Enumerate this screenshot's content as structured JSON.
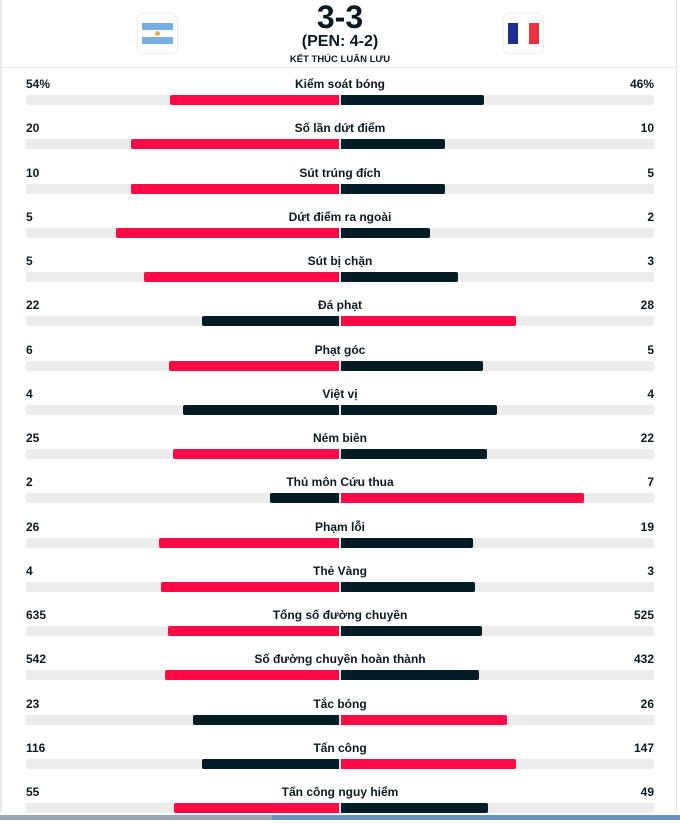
{
  "match": {
    "home_team_flag": "argentina-flag",
    "away_team_flag": "france-flag",
    "score": "3-3",
    "penalties": "(PEN: 4-2)",
    "status": "KẾT THÚC LUÂN LƯU"
  },
  "colors": {
    "leader": "#ff0a45",
    "trailer": "#021c26",
    "track": "#ececec",
    "argentina_blue": "#79aee0",
    "france_blue": "#1f2f8f",
    "france_red": "#e8323c"
  },
  "stats": [
    {
      "label": "Kiểm soát bóng",
      "home": "54%",
      "away": "46%",
      "home_value": 54,
      "away_value": 46
    },
    {
      "label": "Số lần dứt điểm",
      "home": "20",
      "away": "10",
      "home_value": 20,
      "away_value": 10
    },
    {
      "label": "Sút trúng đích",
      "home": "10",
      "away": "5",
      "home_value": 10,
      "away_value": 5
    },
    {
      "label": "Dứt điểm ra ngoài",
      "home": "5",
      "away": "2",
      "home_value": 5,
      "away_value": 2
    },
    {
      "label": "Sút bị chặn",
      "home": "5",
      "away": "3",
      "home_value": 5,
      "away_value": 3
    },
    {
      "label": "Đá phạt",
      "home": "22",
      "away": "28",
      "home_value": 22,
      "away_value": 28
    },
    {
      "label": "Phạt góc",
      "home": "6",
      "away": "5",
      "home_value": 6,
      "away_value": 5
    },
    {
      "label": "Việt vị",
      "home": "4",
      "away": "4",
      "home_value": 4,
      "away_value": 4
    },
    {
      "label": "Ném biên",
      "home": "25",
      "away": "22",
      "home_value": 25,
      "away_value": 22
    },
    {
      "label": "Thủ môn Cứu thua",
      "home": "2",
      "away": "7",
      "home_value": 2,
      "away_value": 7
    },
    {
      "label": "Phạm lỗi",
      "home": "26",
      "away": "19",
      "home_value": 26,
      "away_value": 19
    },
    {
      "label": "Thẻ Vàng",
      "home": "4",
      "away": "3",
      "home_value": 4,
      "away_value": 3
    },
    {
      "label": "Tổng số đường chuyền",
      "home": "635",
      "away": "525",
      "home_value": 635,
      "away_value": 525
    },
    {
      "label": "Số đường chuyền hoàn thành",
      "home": "542",
      "away": "432",
      "home_value": 542,
      "away_value": 432
    },
    {
      "label": "Tắc bóng",
      "home": "23",
      "away": "26",
      "home_value": 23,
      "away_value": 26
    },
    {
      "label": "Tấn công",
      "home": "116",
      "away": "147",
      "home_value": 116,
      "away_value": 147
    },
    {
      "label": "Tấn công nguy hiểm",
      "home": "55",
      "away": "49",
      "home_value": 55,
      "away_value": 49
    }
  ]
}
